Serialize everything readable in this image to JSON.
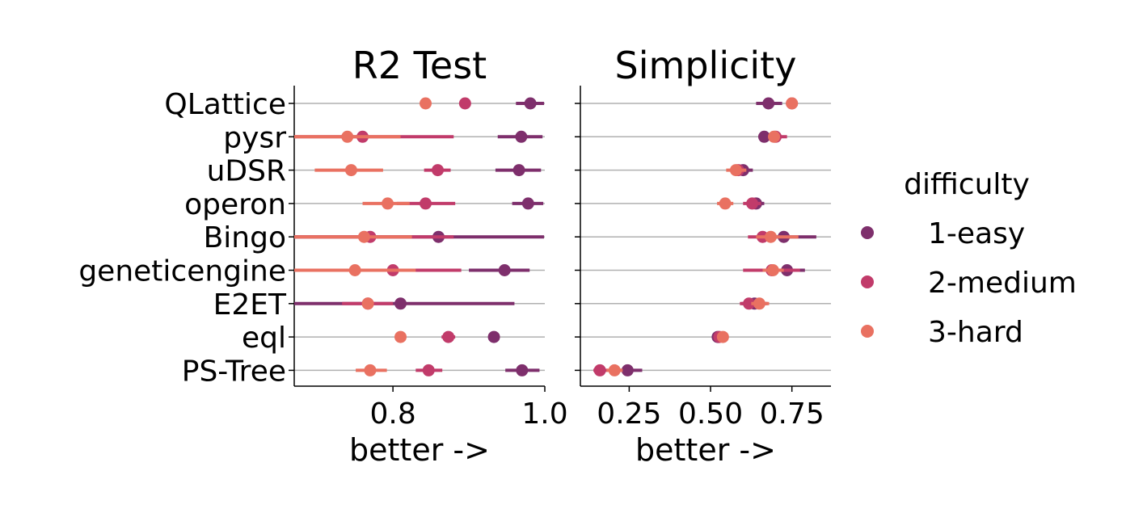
{
  "chart_data": {
    "type": "scatter",
    "title": "",
    "y_categories": [
      "QLattice",
      "pysr",
      "uDSR",
      "operon",
      "Bingo",
      "geneticengine",
      "E2ET",
      "eql",
      "PS-Tree"
    ],
    "legend": {
      "title": "difficulty",
      "placement": "right",
      "entries": [
        {
          "label": "1-easy",
          "color": "#7e2f6c"
        },
        {
          "label": "2-medium",
          "color": "#c13b6a"
        },
        {
          "label": "3-hard",
          "color": "#e97161"
        }
      ]
    },
    "grid": {
      "x": false,
      "y": true
    },
    "panels": [
      {
        "title": "R2 Test",
        "xlabel": "better ->",
        "xlim": [
          0.67,
          1.0
        ],
        "xticks": [
          0.8,
          1.0
        ],
        "xtick_labels": [
          "0.8",
          "1.0"
        ],
        "series": [
          {
            "name": "1-easy",
            "points": [
              {
                "y": "QLattice",
                "x": 0.981,
                "ci": [
                  0.962,
                  0.999
                ]
              },
              {
                "y": "pysr",
                "x": 0.969,
                "ci": [
                  0.938,
                  0.997
                ]
              },
              {
                "y": "uDSR",
                "x": 0.966,
                "ci": [
                  0.935,
                  0.995
                ]
              },
              {
                "y": "operon",
                "x": 0.978,
                "ci": [
                  0.957,
                  0.998
                ]
              },
              {
                "y": "Bingo",
                "x": 0.86,
                "ci": [
                  0.67,
                  0.999
                ]
              },
              {
                "y": "geneticengine",
                "x": 0.947,
                "ci": [
                  0.9,
                  0.98
                ]
              },
              {
                "y": "E2ET",
                "x": 0.81,
                "ci": [
                  0.67,
                  0.96
                ]
              },
              {
                "y": "eql",
                "x": 0.933,
                "ci": [
                  0.933,
                  0.933
                ]
              },
              {
                "y": "PS-Tree",
                "x": 0.97,
                "ci": [
                  0.948,
                  0.993
                ]
              }
            ]
          },
          {
            "name": "2-medium",
            "points": [
              {
                "y": "QLattice",
                "x": 0.895,
                "ci": [
                  0.895,
                  0.895
                ]
              },
              {
                "y": "pysr",
                "x": 0.76,
                "ci": [
                  0.67,
                  0.88
                ]
              },
              {
                "y": "uDSR",
                "x": 0.859,
                "ci": [
                  0.841,
                  0.876
                ]
              },
              {
                "y": "operon",
                "x": 0.843,
                "ci": [
                  0.805,
                  0.882
                ]
              },
              {
                "y": "Bingo",
                "x": 0.77,
                "ci": [
                  0.67,
                  0.88
                ]
              },
              {
                "y": "geneticengine",
                "x": 0.8,
                "ci": [
                  0.67,
                  0.89
                ]
              },
              {
                "y": "E2ET",
                "x": 0.767,
                "ci": [
                  0.733,
                  0.8
                ]
              },
              {
                "y": "eql",
                "x": 0.873,
                "ci": [
                  0.864,
                  0.882
                ]
              },
              {
                "y": "PS-Tree",
                "x": 0.847,
                "ci": [
                  0.83,
                  0.865
                ]
              }
            ]
          },
          {
            "name": "3-hard",
            "points": [
              {
                "y": "QLattice",
                "x": 0.843,
                "ci": [
                  0.838,
                  0.848
                ]
              },
              {
                "y": "pysr",
                "x": 0.74,
                "ci": [
                  0.67,
                  0.81
                ]
              },
              {
                "y": "uDSR",
                "x": 0.745,
                "ci": [
                  0.697,
                  0.787
                ]
              },
              {
                "y": "operon",
                "x": 0.793,
                "ci": [
                  0.76,
                  0.822
                ]
              },
              {
                "y": "Bingo",
                "x": 0.762,
                "ci": [
                  0.67,
                  0.825
                ]
              },
              {
                "y": "geneticengine",
                "x": 0.75,
                "ci": [
                  0.67,
                  0.83
                ]
              },
              {
                "y": "E2ET",
                "x": 0.767,
                "ci": [
                  0.767,
                  0.767
                ]
              },
              {
                "y": "eql",
                "x": 0.81,
                "ci": [
                  0.81,
                  0.81
                ]
              },
              {
                "y": "PS-Tree",
                "x": 0.77,
                "ci": [
                  0.751,
                  0.792
                ]
              }
            ]
          }
        ]
      },
      {
        "title": "Simplicity",
        "xlabel": "better ->",
        "xlim": [
          0.1,
          0.87
        ],
        "xticks": [
          0.25,
          0.5,
          0.75
        ],
        "xtick_labels": [
          "0.25",
          "0.50",
          "0.75"
        ],
        "series": [
          {
            "name": "1-easy",
            "points": [
              {
                "y": "QLattice",
                "x": 0.678,
                "ci": [
                  0.64,
                  0.72
                ]
              },
              {
                "y": "pysr",
                "x": 0.665,
                "ci": [
                  0.655,
                  0.677
                ]
              },
              {
                "y": "uDSR",
                "x": 0.6,
                "ci": [
                  0.58,
                  0.63
                ]
              },
              {
                "y": "operon",
                "x": 0.64,
                "ci": [
                  0.62,
                  0.665
                ]
              },
              {
                "y": "Bingo",
                "x": 0.725,
                "ci": [
                  0.69,
                  0.825
                ]
              },
              {
                "y": "geneticengine",
                "x": 0.735,
                "ci": [
                  0.7,
                  0.79
                ]
              },
              {
                "y": "E2ET",
                "x": 0.635,
                "ci": [
                  0.595,
                  0.675
                ]
              },
              {
                "y": "eql",
                "x": 0.522,
                "ci": [
                  0.515,
                  0.53
                ]
              },
              {
                "y": "PS-Tree",
                "x": 0.245,
                "ci": [
                  0.2,
                  0.29
                ]
              }
            ]
          },
          {
            "name": "2-medium",
            "points": [
              {
                "y": "QLattice",
                "x": 0.75,
                "ci": [
                  0.75,
                  0.75
                ]
              },
              {
                "y": "pysr",
                "x": 0.7,
                "ci": [
                  0.68,
                  0.735
                ]
              },
              {
                "y": "uDSR",
                "x": 0.585,
                "ci": [
                  0.57,
                  0.6
                ]
              },
              {
                "y": "operon",
                "x": 0.628,
                "ci": [
                  0.6,
                  0.655
                ]
              },
              {
                "y": "Bingo",
                "x": 0.66,
                "ci": [
                  0.615,
                  0.7
                ]
              },
              {
                "y": "geneticengine",
                "x": 0.688,
                "ci": [
                  0.6,
                  0.775
                ]
              },
              {
                "y": "E2ET",
                "x": 0.618,
                "ci": [
                  0.59,
                  0.645
                ]
              },
              {
                "y": "eql",
                "x": 0.527,
                "ci": [
                  0.52,
                  0.535
                ]
              },
              {
                "y": "PS-Tree",
                "x": 0.16,
                "ci": [
                  0.14,
                  0.185
                ]
              }
            ]
          },
          {
            "name": "3-hard",
            "points": [
              {
                "y": "QLattice",
                "x": 0.75,
                "ci": [
                  0.745,
                  0.755
                ]
              },
              {
                "y": "pysr",
                "x": 0.695,
                "ci": [
                  0.68,
                  0.712
                ]
              },
              {
                "y": "uDSR",
                "x": 0.578,
                "ci": [
                  0.548,
                  0.61
                ]
              },
              {
                "y": "operon",
                "x": 0.545,
                "ci": [
                  0.52,
                  0.57
                ]
              },
              {
                "y": "Bingo",
                "x": 0.685,
                "ci": [
                  0.64,
                  0.77
                ]
              },
              {
                "y": "geneticengine",
                "x": 0.692,
                "ci": [
                  0.66,
                  0.725
                ]
              },
              {
                "y": "E2ET",
                "x": 0.65,
                "ci": [
                  0.625,
                  0.68
                ]
              },
              {
                "y": "eql",
                "x": 0.538,
                "ci": [
                  0.53,
                  0.545
                ]
              },
              {
                "y": "PS-Tree",
                "x": 0.205,
                "ci": [
                  0.18,
                  0.23
                ]
              }
            ]
          }
        ]
      }
    ]
  }
}
